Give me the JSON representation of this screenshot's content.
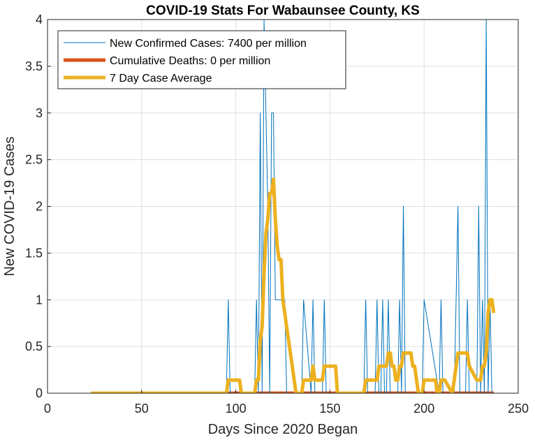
{
  "chart_data": {
    "type": "line",
    "title": "COVID-19 Stats For Wabaunsee County, KS",
    "xlabel": "Days Since 2020 Began",
    "ylabel": "New COVID-19 Cases",
    "xlim": [
      0,
      250
    ],
    "ylim": [
      0,
      4
    ],
    "xticks": [
      "0",
      "50",
      "100",
      "150",
      "200",
      "250"
    ],
    "yticks": [
      "0",
      "0.5",
      "1",
      "1.5",
      "2",
      "2.5",
      "3",
      "3.5",
      "4"
    ],
    "grid": true,
    "legend_position": "top-left",
    "colors": {
      "new_cases": "#0072BD",
      "deaths": "#D95319",
      "average": "#EDB120"
    },
    "series": [
      {
        "name": "New Confirmed Cases: 7400 per million",
        "x": [
          23,
          95,
          96,
          97,
          110,
          111,
          112,
          113,
          114,
          115,
          116,
          117,
          118,
          119,
          120,
          121,
          122,
          123,
          124,
          125,
          126,
          127,
          128,
          135,
          136,
          140,
          141,
          142,
          146,
          147,
          148,
          168,
          169,
          170,
          174,
          175,
          176,
          177,
          178,
          179,
          180,
          181,
          182,
          186,
          187,
          188,
          189,
          190,
          191,
          199,
          200,
          208,
          209,
          210,
          216,
          217,
          218,
          219,
          220,
          222,
          223,
          224,
          228,
          229,
          230,
          231,
          232,
          233,
          234,
          235,
          236,
          237
        ],
        "y": [
          0,
          0,
          1,
          0,
          0,
          1,
          0,
          3,
          0,
          4,
          3,
          2,
          0,
          3,
          3,
          1,
          1,
          1,
          1,
          1,
          1,
          0,
          0,
          0,
          1,
          0,
          1,
          0,
          0,
          1,
          0,
          0,
          1,
          0,
          0,
          1,
          0,
          0,
          1,
          0,
          0,
          1,
          0,
          0,
          1,
          0,
          2,
          0,
          0,
          0,
          1,
          0,
          1,
          0,
          0,
          1,
          2,
          0,
          0,
          0,
          1,
          0,
          0,
          2,
          0,
          1,
          0,
          4,
          0,
          1,
          0,
          0
        ]
      },
      {
        "name": "Cumulative Deaths: 0 per million",
        "x": [
          23,
          237
        ],
        "y": [
          0,
          0
        ]
      },
      {
        "name": "7 Day Case Average",
        "x": [
          23,
          95,
          96,
          102,
          103,
          110,
          111,
          112,
          113,
          114,
          115,
          116,
          117,
          118,
          119,
          120,
          121,
          122,
          123,
          124,
          125,
          126,
          127,
          128,
          129,
          130,
          131,
          132,
          133,
          134,
          135,
          136,
          140,
          141,
          142,
          143,
          146,
          147,
          148,
          153,
          154,
          168,
          169,
          175,
          176,
          177,
          178,
          179,
          180,
          181,
          182,
          183,
          184,
          185,
          186,
          187,
          188,
          189,
          190,
          191,
          192,
          193,
          194,
          195,
          196,
          197,
          198,
          199,
          200,
          206,
          207,
          208,
          209,
          210,
          211,
          215,
          216,
          217,
          218,
          219,
          220,
          222,
          223,
          224,
          228,
          229,
          230,
          231,
          232,
          233,
          234,
          235,
          236,
          237
        ],
        "y": [
          0,
          0,
          0.14,
          0.14,
          0,
          0,
          0.14,
          0.14,
          0.57,
          0.71,
          1.29,
          1.71,
          1.86,
          2.14,
          2.14,
          2.29,
          1.86,
          1.57,
          1.43,
          1.43,
          1.0,
          0.86,
          0.71,
          0.57,
          0.43,
          0.29,
          0.14,
          0,
          0,
          0,
          0,
          0.14,
          0.14,
          0.29,
          0.14,
          0.14,
          0.14,
          0.29,
          0.29,
          0.29,
          0,
          0,
          0.14,
          0.14,
          0.29,
          0.29,
          0.29,
          0.29,
          0.29,
          0.43,
          0.43,
          0.29,
          0.29,
          0.14,
          0.14,
          0.29,
          0.29,
          0.43,
          0.43,
          0.43,
          0.43,
          0.43,
          0.29,
          0.29,
          0.14,
          0,
          0,
          0,
          0.14,
          0.14,
          0,
          0,
          0.14,
          0.14,
          0.14,
          0,
          0.14,
          0.29,
          0.43,
          0.43,
          0.43,
          0.43,
          0.43,
          0.29,
          0.14,
          0.14,
          0.14,
          0.29,
          0.29,
          0.43,
          0.86,
          1.0,
          1.0,
          0.86
        ]
      }
    ]
  }
}
